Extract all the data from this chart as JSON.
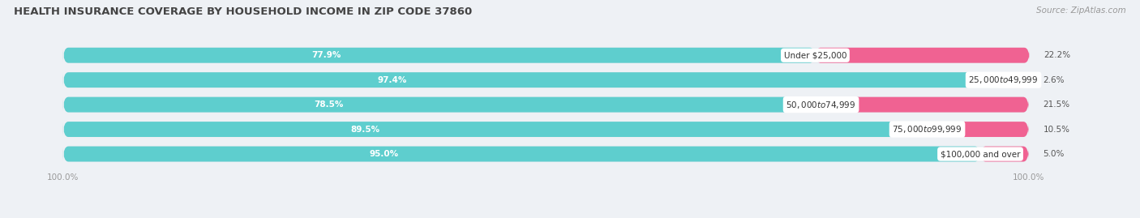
{
  "title": "HEALTH INSURANCE COVERAGE BY HOUSEHOLD INCOME IN ZIP CODE 37860",
  "source": "Source: ZipAtlas.com",
  "categories": [
    "Under $25,000",
    "$25,000 to $49,999",
    "$50,000 to $74,999",
    "$75,000 to $99,999",
    "$100,000 and over"
  ],
  "with_coverage": [
    77.9,
    97.4,
    78.5,
    89.5,
    95.0
  ],
  "without_coverage": [
    22.2,
    2.6,
    21.5,
    10.5,
    5.0
  ],
  "color_with": "#5ecece",
  "color_without": "#f06292",
  "bg_color": "#eef1f5",
  "bar_bg": "#dde3ea",
  "title_fontsize": 9.5,
  "label_fontsize": 7.5,
  "tick_fontsize": 7.5,
  "source_fontsize": 7.5,
  "bar_height": 0.62,
  "xlim_left": -3,
  "xlim_right": 108
}
